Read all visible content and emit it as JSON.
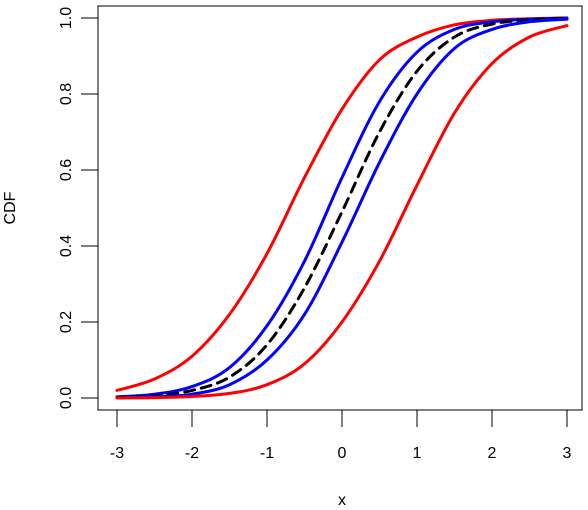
{
  "chart_data": {
    "type": "line",
    "title": "",
    "xlabel": "x",
    "ylabel": "CDF",
    "xlim": [
      -3,
      3
    ],
    "ylim": [
      0,
      1
    ],
    "x_ticks": [
      "-3",
      "-2",
      "-1",
      "0",
      "1",
      "2",
      "3"
    ],
    "y_ticks": [
      "0.0",
      "0.2",
      "0.4",
      "0.6",
      "0.8",
      "1.0"
    ],
    "grid": false,
    "legend": "none",
    "series": [
      {
        "color": "#ff0000",
        "style": "solid",
        "x": [
          -3,
          -2.5,
          -2,
          -1.5,
          -1,
          -0.5,
          0,
          0.5,
          1,
          1.5,
          2,
          2.5,
          3
        ],
        "values": [
          0.02,
          0.05,
          0.11,
          0.22,
          0.38,
          0.58,
          0.76,
          0.89,
          0.95,
          0.982,
          0.994,
          0.998,
          1.0
        ]
      },
      {
        "color": "#0000ff",
        "style": "solid",
        "x": [
          -3,
          -2.5,
          -2,
          -1.5,
          -1,
          -0.5,
          0,
          0.5,
          1,
          1.5,
          2,
          2.5,
          3
        ],
        "values": [
          0.003,
          0.01,
          0.03,
          0.08,
          0.19,
          0.36,
          0.58,
          0.78,
          0.91,
          0.97,
          0.99,
          0.997,
          1.0
        ]
      },
      {
        "color": "#000000",
        "style": "dashed",
        "x": [
          -3,
          -2.5,
          -2,
          -1.5,
          -1,
          -0.5,
          0,
          0.5,
          1,
          1.5,
          2,
          2.5,
          3
        ],
        "values": [
          0.001,
          0.006,
          0.02,
          0.055,
          0.14,
          0.29,
          0.49,
          0.7,
          0.86,
          0.95,
          0.984,
          0.995,
          1.0
        ]
      },
      {
        "color": "#0000ff",
        "style": "solid",
        "x": [
          -3,
          -2.5,
          -2,
          -1.5,
          -1,
          -0.5,
          0,
          0.5,
          1,
          1.5,
          2,
          2.5,
          3
        ],
        "values": [
          0.0005,
          0.003,
          0.01,
          0.035,
          0.1,
          0.22,
          0.41,
          0.62,
          0.8,
          0.92,
          0.97,
          0.99,
          0.997
        ]
      },
      {
        "color": "#ff0000",
        "style": "solid",
        "x": [
          -3,
          -2.5,
          -2,
          -1.5,
          -1,
          -0.5,
          0,
          0.5,
          1,
          1.5,
          2,
          2.5,
          3
        ],
        "values": [
          0.0,
          0.001,
          0.004,
          0.012,
          0.035,
          0.09,
          0.2,
          0.36,
          0.56,
          0.75,
          0.88,
          0.95,
          0.98
        ]
      }
    ]
  }
}
